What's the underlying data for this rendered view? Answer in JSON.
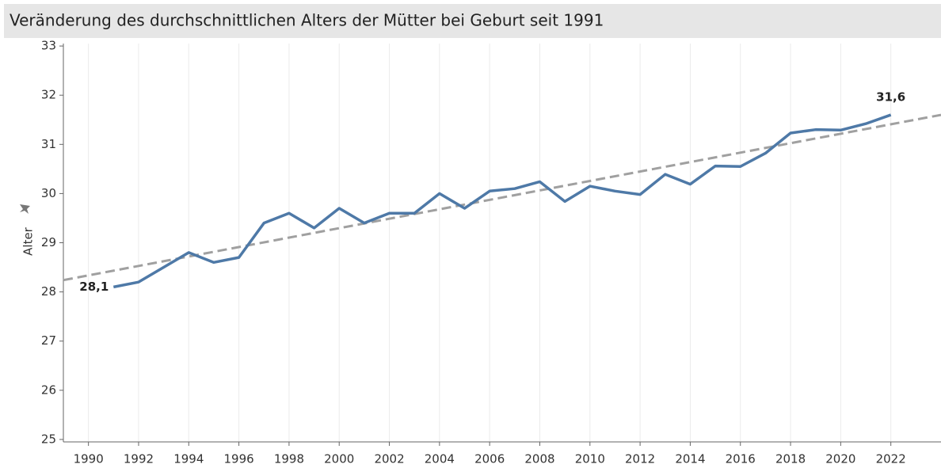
{
  "chart_data": {
    "type": "line",
    "title": "Veränderung des durchschnittlichen Alters der Mütter bei Geburt seit 1991",
    "y_label": "Alter",
    "x": [
      1991,
      1992,
      1993,
      1994,
      1995,
      1996,
      1997,
      1998,
      1999,
      2000,
      2001,
      2002,
      2003,
      2004,
      2005,
      2006,
      2007,
      2008,
      2009,
      2010,
      2011,
      2012,
      2013,
      2014,
      2015,
      2016,
      2017,
      2018,
      2019,
      2020,
      2021,
      2022
    ],
    "series": [
      {
        "color": "#4e79a7",
        "values": [
          28.1,
          28.2,
          28.5,
          28.8,
          28.6,
          28.7,
          29.4,
          29.6,
          29.3,
          29.7,
          29.4,
          29.6,
          29.6,
          30.0,
          29.7,
          30.05,
          30.1,
          30.24,
          29.84,
          30.15,
          30.05,
          29.98,
          30.39,
          30.19,
          30.56,
          30.55,
          30.82,
          31.23,
          31.3,
          31.29,
          31.42,
          31.6
        ],
        "value_labels": [
          "28,1",
          null,
          null,
          null,
          null,
          null,
          null,
          null,
          null,
          null,
          null,
          null,
          null,
          null,
          null,
          null,
          null,
          null,
          null,
          null,
          null,
          null,
          null,
          null,
          null,
          null,
          null,
          null,
          null,
          null,
          null,
          "31,6"
        ]
      }
    ],
    "trendline": {
      "color": "#a0a0a0",
      "x": [
        1989,
        2024
      ],
      "values": [
        28.24,
        31.6
      ]
    },
    "xlim": [
      1989,
      2024
    ],
    "xticks": [
      1990,
      1992,
      1994,
      1996,
      1998,
      2000,
      2002,
      2004,
      2006,
      2008,
      2010,
      2012,
      2014,
      2016,
      2018,
      2020,
      2022
    ],
    "ylim": [
      24.95,
      33.05
    ],
    "yticks": [
      25,
      26,
      27,
      28,
      29,
      30,
      31,
      32,
      33
    ],
    "grid": "x"
  }
}
